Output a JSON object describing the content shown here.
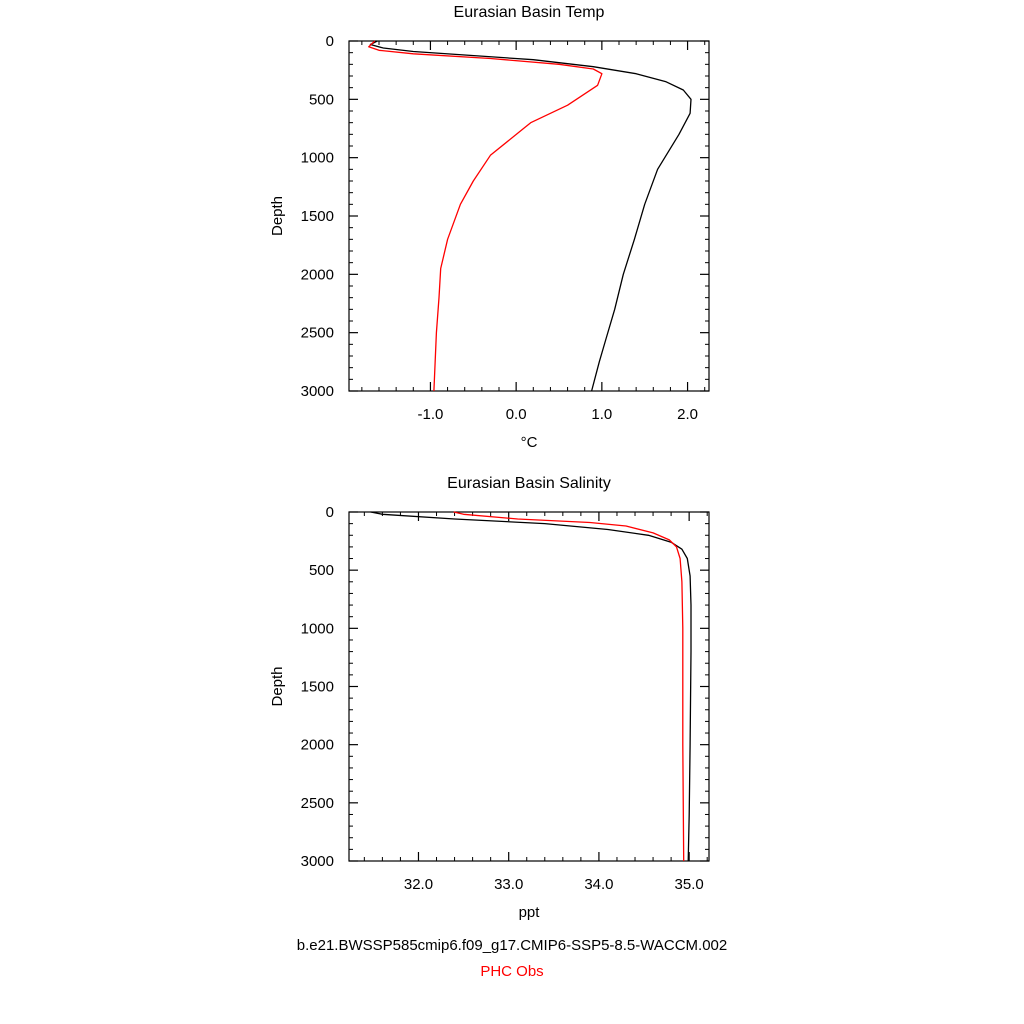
{
  "colors": {
    "model": "#000000",
    "obs": "#ff0000",
    "axis": "#000000"
  },
  "legend": {
    "model_label": "b.e21.BWSSP585cmip6.f09_g17.CMIP6-SSP5-8.5-WACCM.002",
    "obs_label": "PHC Obs"
  },
  "chart_data": [
    {
      "type": "line",
      "title": "Eurasian Basin Temp",
      "xlabel": "°C",
      "ylabel": "Depth",
      "xlim": [
        -1.95,
        2.25
      ],
      "ylim": [
        3000,
        0
      ],
      "y_inverted": true,
      "xticks": [
        -1.0,
        0.0,
        1.0,
        2.0
      ],
      "xtick_labels": [
        "-1.0",
        "0.0",
        "1.0",
        "2.0"
      ],
      "yticks": [
        0,
        500,
        1000,
        1500,
        2000,
        2500,
        3000
      ],
      "ytick_labels": [
        "0",
        "500",
        "1000",
        "1500",
        "2000",
        "2500",
        "3000"
      ],
      "grid": false,
      "series": [
        {
          "role": "model",
          "x": [
            -1.62,
            -1.7,
            -1.55,
            -1.2,
            -0.6,
            0.2,
            0.9,
            1.4,
            1.75,
            1.95,
            2.04,
            2.03,
            1.9,
            1.65,
            1.5,
            1.38,
            1.25,
            1.15,
            1.05,
            0.97,
            0.88
          ],
          "y": [
            0,
            30,
            60,
            90,
            120,
            160,
            220,
            280,
            350,
            420,
            500,
            620,
            800,
            1100,
            1400,
            1700,
            2000,
            2300,
            2550,
            2750,
            3000
          ]
        },
        {
          "role": "obs",
          "x": [
            -1.65,
            -1.72,
            -1.6,
            -1.2,
            -0.3,
            0.5,
            0.9,
            1.0,
            0.95,
            0.6,
            0.17,
            -0.3,
            -0.5,
            -0.65,
            -0.8,
            -0.88,
            -0.9,
            -0.93,
            -0.96
          ],
          "y": [
            0,
            50,
            80,
            110,
            150,
            200,
            240,
            280,
            380,
            550,
            700,
            980,
            1200,
            1400,
            1700,
            1950,
            2200,
            2500,
            3000
          ]
        }
      ]
    },
    {
      "type": "line",
      "title": "Eurasian Basin Salinity",
      "xlabel": "ppt",
      "ylabel": "Depth",
      "xlim": [
        31.23,
        35.22
      ],
      "ylim": [
        3000,
        0
      ],
      "y_inverted": true,
      "xticks": [
        32.0,
        33.0,
        34.0,
        35.0
      ],
      "xtick_labels": [
        "32.0",
        "33.0",
        "34.0",
        "35.0"
      ],
      "yticks": [
        0,
        500,
        1000,
        1500,
        2000,
        2500,
        3000
      ],
      "ytick_labels": [
        "0",
        "500",
        "1000",
        "1500",
        "2000",
        "2500",
        "3000"
      ],
      "grid": false,
      "series": [
        {
          "role": "model",
          "x": [
            31.47,
            31.6,
            32.4,
            33.4,
            34.1,
            34.55,
            34.8,
            34.92,
            34.98,
            35.01,
            35.02,
            35.02,
            35.01,
            35.0,
            34.99
          ],
          "y": [
            0,
            20,
            60,
            100,
            150,
            200,
            260,
            320,
            400,
            550,
            800,
            1200,
            2000,
            2600,
            3000
          ]
        },
        {
          "role": "obs",
          "x": [
            32.39,
            32.5,
            33.1,
            33.9,
            34.3,
            34.6,
            34.78,
            34.86,
            34.9,
            34.92,
            34.93,
            34.93,
            34.94
          ],
          "y": [
            0,
            20,
            60,
            90,
            120,
            180,
            240,
            300,
            400,
            600,
            1000,
            2000,
            3000
          ]
        }
      ]
    }
  ]
}
